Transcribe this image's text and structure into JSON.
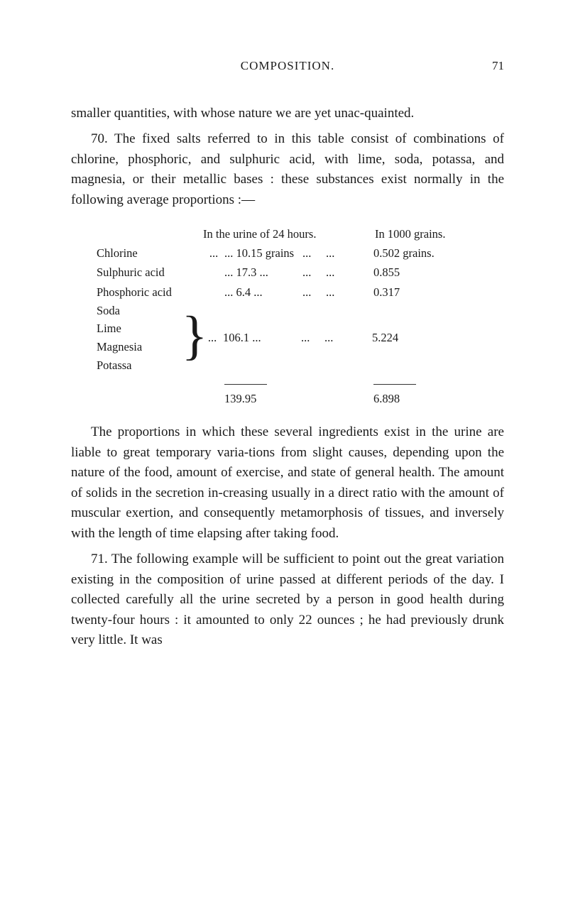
{
  "header": {
    "title": "COMPOSITION.",
    "page_number": "71"
  },
  "para1a": "smaller quantities, with whose nature we are yet unac-quainted.",
  "para1b": "70. The fixed salts referred to in this table consist of combinations of chlorine, phosphoric, and sulphuric acid, with lime, soda, potassa, and magnesia, or their metallic bases : these substances exist normally in the following average proportions :—",
  "table": {
    "heading_left": "In the urine of 24 hours.",
    "heading_right": "In 1000 grains.",
    "rows": [
      {
        "label": "Chlorine",
        "dots1": "...",
        "val1": "...   10.15 grains",
        "dots2": "...     ...",
        "val2": "0.502 grains."
      },
      {
        "label": "Sulphuric acid",
        "dots1": "",
        "val1": "...   17.3      ...",
        "dots2": "...     ...",
        "val2": "0.855"
      },
      {
        "label": "Phosphoric acid",
        "dots1": "",
        "val1": "...     6.4      ...",
        "dots2": "...     ...",
        "val2": "0.317"
      }
    ],
    "group_labels": [
      "Soda",
      "Lime",
      "Magnesia",
      "Potassa"
    ],
    "group_dots1": "...",
    "group_val1": "106.1     ...",
    "group_dots2": "...     ...",
    "group_val2": "5.224",
    "total_left": "139.95",
    "total_right": "6.898"
  },
  "para2": "The proportions in which these several ingredients exist in the urine are liable to great temporary varia-tions from slight causes, depending upon the nature of the food, amount of exercise, and state of general health. The amount of solids in the secretion in-creasing usually in a direct ratio with the amount of muscular exertion, and consequently metamorphosis of tissues, and inversely with the length of time elapsing after taking food.",
  "para3": "71. The following example will be sufficient to point out the great variation existing in the composition of urine passed at different periods of the day. I collected carefully all the urine secreted by a person in good health during twenty-four hours : it amounted to only 22 ounces ; he had previously drunk very little. It was"
}
